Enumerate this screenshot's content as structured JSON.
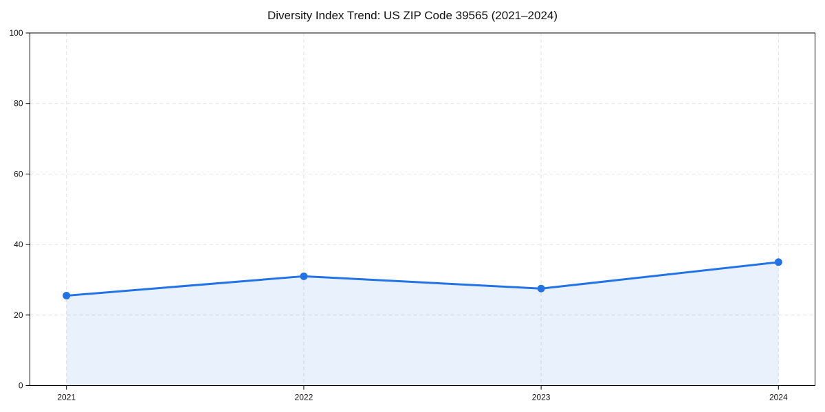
{
  "title": "Diversity Index Trend: US ZIP Code 39565 (2021–2024)",
  "chart_data": {
    "type": "line",
    "title": "Diversity Index Trend: US ZIP Code 39565 (2021–2024)",
    "series_name": "Diversity Index",
    "categories": [
      "2021",
      "2022",
      "2023",
      "2024"
    ],
    "values": [
      25.5,
      31,
      27.5,
      35
    ],
    "xlabel": "",
    "ylabel": "",
    "ylim": [
      0,
      100
    ],
    "yticks": [
      0,
      20,
      40,
      60,
      80,
      100
    ],
    "grid": true,
    "grid_style": "dashed",
    "legend": "none",
    "area_fill": true,
    "marker": "circle",
    "colors": {
      "line": "#2173e6",
      "marker": "#2173e6",
      "fill": "rgba(33,115,230,0.10)",
      "grid": "#e2e2e2",
      "axis": "#000000",
      "text": "#111111",
      "background": "#ffffff"
    }
  }
}
